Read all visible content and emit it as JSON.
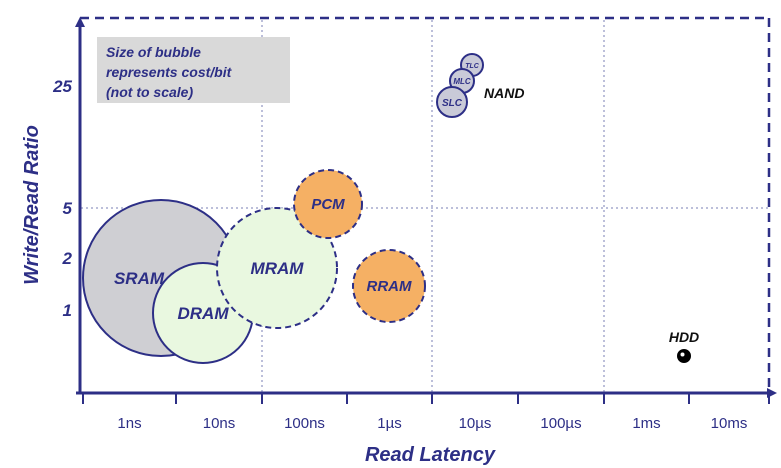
{
  "chart_data": {
    "type": "scatter",
    "title": "",
    "xlabel": "Read Latency",
    "ylabel": "Write/Read Ratio",
    "x_ticks": [
      "1ns",
      "10ns",
      "100ns",
      "1µs",
      "10µs",
      "100µs",
      "1ms",
      "10ms"
    ],
    "y_ticks": [
      "1",
      "2",
      "5",
      "25"
    ],
    "note_lines": [
      "Size of bubble",
      "represents cost/bit",
      "(not to scale)"
    ],
    "grid": true,
    "colors": {
      "axis": "#2d2f86",
      "sram": "#cfcfd3",
      "dram": "#e9f8e0",
      "mram": "#e9f8e0",
      "pcm": "#f5b064",
      "rram": "#f5b064",
      "nand": "#c9cad8",
      "hdd": "#000000",
      "note_bg": "#d9d9d9"
    },
    "points": [
      {
        "name": "SRAM",
        "x": "1ns",
        "y": 2,
        "size": 4,
        "style": "solid",
        "color_key": "sram"
      },
      {
        "name": "DRAM",
        "x": "10ns",
        "y": 1,
        "size": 3,
        "style": "solid",
        "color_key": "dram"
      },
      {
        "name": "MRAM",
        "x": "100ns",
        "y": 2,
        "size": 3,
        "style": "dashed",
        "color_key": "mram"
      },
      {
        "name": "PCM",
        "x": "100ns",
        "y": 5,
        "size": 1.5,
        "style": "dashed",
        "color_key": "pcm"
      },
      {
        "name": "RRAM",
        "x": "1µs",
        "y": 1,
        "size": 1.5,
        "style": "dashed",
        "color_key": "rram"
      },
      {
        "name": "SLC",
        "x": "10µs",
        "y": 25,
        "size": 0.6,
        "style": "solid",
        "color_key": "nand"
      },
      {
        "name": "MLC",
        "x": "10µs",
        "y": 25,
        "size": 0.45,
        "style": "solid",
        "color_key": "nand"
      },
      {
        "name": "TLC",
        "x": "10µs",
        "y": 25,
        "size": 0.4,
        "style": "solid",
        "color_key": "nand"
      },
      {
        "name": "HDD",
        "x": "10ms",
        "y": 0.5,
        "size": 0.2,
        "style": "solid",
        "color_key": "hdd"
      }
    ],
    "group_labels": [
      {
        "text": "NAND"
      }
    ]
  }
}
